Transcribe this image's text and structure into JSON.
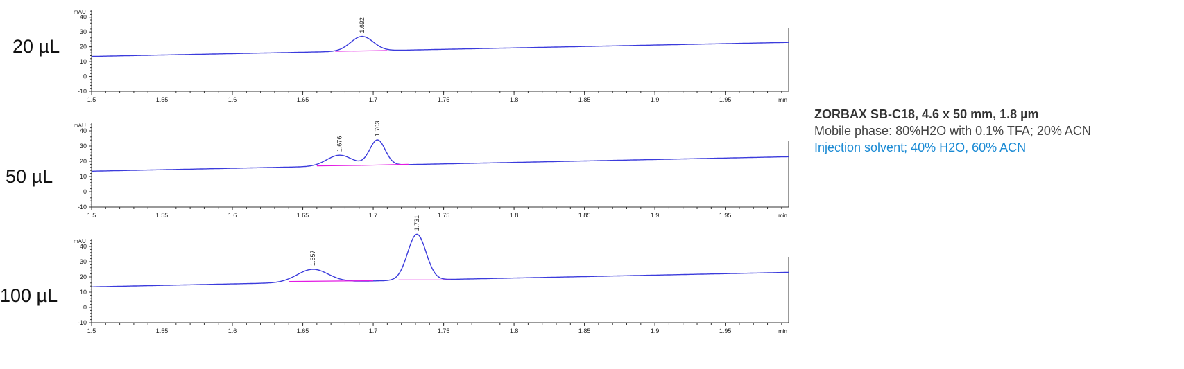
{
  "column_info": {
    "column": "ZORBAX SB-C18, 4.6 x 50 mm, 1.8 µm",
    "mobile_phase": "Mobile phase: 80%H2O with 0.1% TFA; 20% ACN",
    "injection_solvent": "Injection solvent; 40% H2O, 60% ACN"
  },
  "colors": {
    "trace": "#3b3bdc",
    "baseline": "#e31be3",
    "axis": "#333333",
    "injection_text": "#1a8ad4"
  },
  "chart_data": [
    {
      "type": "line",
      "label": "20 µL",
      "ylabel": "mAU",
      "xlabel": "min",
      "xlim": [
        1.5,
        1.995
      ],
      "ylim": [
        -10,
        45
      ],
      "xticks": [
        "1.5",
        "1.55",
        "1.6",
        "1.65",
        "1.7",
        "1.75",
        "1.8",
        "1.85",
        "1.9",
        "1.95"
      ],
      "yticks": [
        "-10",
        "0",
        "10",
        "20",
        "30",
        "40"
      ],
      "baseline": [
        [
          1.5,
          13.5
        ],
        [
          1.995,
          23
        ]
      ],
      "peaks": [
        {
          "rt": "1.692",
          "apex": 1.692,
          "height": 27,
          "width": 0.008
        }
      ],
      "integration_baselines": [
        [
          [
            1.673,
            17
          ],
          [
            1.71,
            17.5
          ]
        ]
      ]
    },
    {
      "type": "line",
      "label": "50 µL",
      "ylabel": "mAU",
      "xlabel": "min",
      "xlim": [
        1.5,
        1.995
      ],
      "ylim": [
        -10,
        45
      ],
      "xticks": [
        "1.5",
        "1.55",
        "1.6",
        "1.65",
        "1.7",
        "1.75",
        "1.8",
        "1.85",
        "1.9",
        "1.95"
      ],
      "yticks": [
        "-10",
        "0",
        "10",
        "20",
        "30",
        "40"
      ],
      "baseline": [
        [
          1.5,
          13.5
        ],
        [
          1.995,
          23
        ]
      ],
      "peaks": [
        {
          "rt": "1.676",
          "apex": 1.676,
          "height": 24,
          "width": 0.009
        },
        {
          "rt": "1.703",
          "apex": 1.703,
          "height": 34,
          "width": 0.0055
        }
      ],
      "integration_baselines": [
        [
          [
            1.66,
            17
          ],
          [
            1.692,
            17.3
          ]
        ],
        [
          [
            1.692,
            17.3
          ],
          [
            1.725,
            18
          ]
        ]
      ]
    },
    {
      "type": "line",
      "label": "100 µL",
      "ylabel": "mAU",
      "xlabel": "min",
      "xlim": [
        1.5,
        1.995
      ],
      "ylim": [
        -10,
        45
      ],
      "xticks": [
        "1.5",
        "1.55",
        "1.6",
        "1.65",
        "1.7",
        "1.75",
        "1.8",
        "1.85",
        "1.9",
        "1.95"
      ],
      "yticks": [
        "-10",
        "0",
        "10",
        "20",
        "30",
        "40"
      ],
      "baseline": [
        [
          1.5,
          13.5
        ],
        [
          1.995,
          23
        ]
      ],
      "peaks": [
        {
          "rt": "1.657",
          "apex": 1.657,
          "height": 25,
          "width": 0.011
        },
        {
          "rt": "1.731",
          "apex": 1.731,
          "height": 48,
          "width": 0.0065
        }
      ],
      "integration_baselines": [
        [
          [
            1.64,
            17
          ],
          [
            1.7,
            17.5
          ]
        ],
        [
          [
            1.718,
            18
          ],
          [
            1.755,
            18
          ]
        ]
      ]
    }
  ]
}
